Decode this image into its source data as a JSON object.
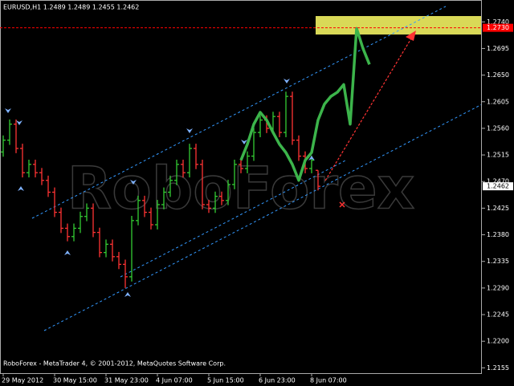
{
  "chart_data": {
    "type": "ohlc",
    "title": "EURUSD,H1  1.2489 1.2489 1.2455 1.2462",
    "watermark": "RoboForex",
    "footer": "RoboForex - MetaTrader 4, © 2001-2012, MetaQuotes Software Corp.",
    "categories": [
      "29 May 2012",
      null,
      null,
      null,
      null,
      null,
      null,
      null,
      "30 May 15:00",
      null,
      null,
      null,
      null,
      null,
      null,
      null,
      "31 May 23:00",
      null,
      null,
      null,
      null,
      null,
      null,
      null,
      "4 Jun 07:00",
      null,
      null,
      null,
      null,
      null,
      null,
      null,
      "5 Jun 15:00",
      null,
      null,
      null,
      null,
      null,
      null,
      null,
      "6 Jun 23:00",
      null,
      null,
      null,
      null,
      null,
      null,
      null,
      "8 Jun 07:00",
      null,
      null,
      null,
      null,
      null,
      null,
      null,
      null,
      null
    ],
    "open": [
      1.252,
      1.254,
      1.2567,
      1.2526,
      1.2485,
      1.2499,
      1.2485,
      1.2472,
      1.2452,
      1.2418,
      1.2391,
      1.2377,
      1.2391,
      1.2411,
      1.2425,
      1.2384,
      1.235,
      1.2364,
      1.2343,
      1.233,
      1.2309,
      1.2404,
      1.2438,
      1.2418,
      1.2397,
      1.2431,
      1.2452,
      1.2472,
      1.2499,
      1.2485,
      1.2526,
      1.2499,
      1.2431,
      1.2425,
      1.2445,
      1.2438,
      1.2465,
      1.2499,
      1.2492,
      1.2513,
      1.2553,
      1.2574,
      1.256,
      1.258,
      1.2553,
      1.2614,
      1.254,
      1.2513,
      1.2492,
      1.2489,
      null,
      null,
      null,
      null,
      null,
      null,
      null,
      null
    ],
    "high": [
      1.2548,
      1.2575,
      1.2575,
      1.2534,
      1.2507,
      1.2507,
      1.2493,
      1.248,
      1.246,
      1.2426,
      1.2399,
      1.2399,
      1.2419,
      1.2433,
      1.2433,
      1.2392,
      1.2372,
      1.2372,
      1.2351,
      1.2338,
      1.2412,
      1.2446,
      1.2446,
      1.2426,
      1.2439,
      1.246,
      1.248,
      1.2507,
      1.2507,
      1.2534,
      1.2534,
      1.2507,
      1.2439,
      1.2453,
      1.2453,
      1.2473,
      1.2507,
      1.2507,
      1.2521,
      1.2561,
      1.2582,
      1.2582,
      1.2588,
      1.2588,
      1.2622,
      1.2622,
      1.2548,
      1.2521,
      1.2514,
      1.2489,
      null,
      null,
      null,
      null,
      null,
      null,
      null,
      null
    ],
    "low": [
      1.2512,
      1.2532,
      1.2518,
      1.2477,
      1.2477,
      1.2477,
      1.2464,
      1.2444,
      1.241,
      1.2383,
      1.2369,
      1.2369,
      1.2383,
      1.2403,
      1.2376,
      1.2342,
      1.2342,
      1.2335,
      1.2322,
      1.229,
      1.2301,
      1.2396,
      1.241,
      1.2389,
      1.2389,
      1.2423,
      1.2444,
      1.2464,
      1.2477,
      1.2477,
      1.2491,
      1.2423,
      1.2417,
      1.2417,
      1.243,
      1.243,
      1.2457,
      1.2484,
      1.2484,
      1.2505,
      1.2545,
      1.2552,
      1.2552,
      1.2545,
      1.2545,
      1.2532,
      1.2505,
      1.2484,
      1.2484,
      1.2455,
      null,
      null,
      null,
      null,
      null,
      null,
      null,
      null
    ],
    "close": [
      1.254,
      1.2567,
      1.2526,
      1.2485,
      1.2499,
      1.2485,
      1.2472,
      1.2452,
      1.2418,
      1.2391,
      1.2377,
      1.2391,
      1.2411,
      1.2425,
      1.2384,
      1.235,
      1.2364,
      1.2343,
      1.233,
      1.2309,
      1.2404,
      1.2438,
      1.2418,
      1.2397,
      1.2431,
      1.2452,
      1.2472,
      1.2499,
      1.2485,
      1.2526,
      1.2499,
      1.2431,
      1.2425,
      1.2445,
      1.2438,
      1.2465,
      1.2499,
      1.2492,
      1.2513,
      1.2553,
      1.2574,
      1.256,
      1.258,
      1.2553,
      1.2614,
      1.254,
      1.2513,
      1.2492,
      1.2506,
      1.2462,
      null,
      null,
      null,
      null,
      null,
      null,
      null,
      null
    ],
    "up_color": "#33cc33",
    "down_color": "#ff3333",
    "overlay": {
      "color": "#3cb44b",
      "values": [
        null,
        null,
        null,
        null,
        null,
        null,
        null,
        null,
        null,
        null,
        null,
        null,
        null,
        null,
        null,
        null,
        null,
        null,
        null,
        null,
        null,
        null,
        null,
        null,
        null,
        null,
        null,
        null,
        null,
        null,
        null,
        null,
        null,
        null,
        null,
        null,
        null,
        1.2506,
        1.2533,
        1.2567,
        1.2587,
        1.2574,
        1.2553,
        1.2533,
        1.2519,
        1.2499,
        1.2472,
        1.2506,
        1.2519,
        1.2574,
        1.2601,
        1.2614,
        1.2621,
        1.2634,
        1.2567,
        1.2729,
        1.2695,
        1.2668
      ]
    },
    "price_lines": [
      {
        "value": 1.273,
        "label": "1.2730",
        "color": "#ff0000"
      },
      {
        "value": 1.2462,
        "label": "1.2462",
        "color": "#ffffff"
      }
    ],
    "ylim": [
      1.2146,
      1.2777
    ],
    "yticks": [
      {
        "value": 1.2155,
        "label": "1.2155"
      },
      {
        "value": 1.22,
        "label": "1.2200"
      },
      {
        "value": 1.2245,
        "label": "1.2245"
      },
      {
        "value": 1.229,
        "label": "1.2290"
      },
      {
        "value": 1.2335,
        "label": "1.2335"
      },
      {
        "value": 1.238,
        "label": "1.2380"
      },
      {
        "value": 1.2425,
        "label": "1.2425"
      },
      {
        "value": 1.247,
        "label": "1.2470"
      },
      {
        "value": 1.2515,
        "label": "1.2515"
      },
      {
        "value": 1.256,
        "label": "1.2560"
      },
      {
        "value": 1.2605,
        "label": "1.2605"
      },
      {
        "value": 1.265,
        "label": "1.2650"
      },
      {
        "value": 1.2695,
        "label": "1.2695"
      },
      {
        "value": 1.274,
        "label": "1.2740"
      }
    ],
    "grid": false
  }
}
